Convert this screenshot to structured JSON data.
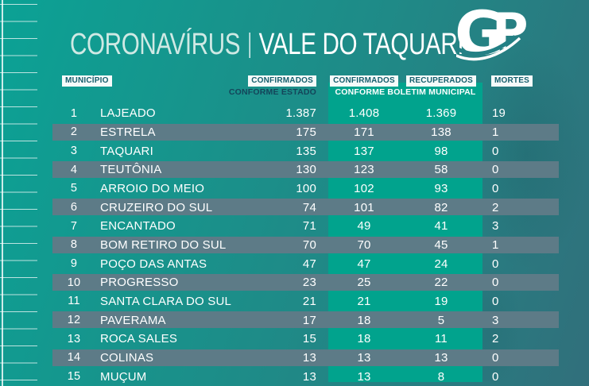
{
  "header": {
    "title_left": "CORONAVÍRUS",
    "title_divider": "|",
    "title_right": "VALE DO TAQUARI",
    "logo_text": "GP"
  },
  "columns": {
    "municipio": "MUNICÍPIO",
    "confirmados_estado": "CONFIRMADOS",
    "confirmados_municipal": "CONFIRMADOS",
    "recuperados": "RECUPERADOS",
    "mortes": "MORTES",
    "sub_estado": "CONFORME ESTADO",
    "sub_municipal": "CONFORME BOLETIM MUNICIPAL"
  },
  "table": {
    "rows": [
      {
        "rank": "1",
        "name": "LAJEADO",
        "confirmed_state": "1.387",
        "confirmed_municipal": "1.408",
        "recovered": "1.369",
        "deaths": "19"
      },
      {
        "rank": "2",
        "name": "ESTRELA",
        "confirmed_state": "175",
        "confirmed_municipal": "171",
        "recovered": "138",
        "deaths": "1"
      },
      {
        "rank": "3",
        "name": "TAQUARI",
        "confirmed_state": "135",
        "confirmed_municipal": "137",
        "recovered": "98",
        "deaths": "0"
      },
      {
        "rank": "4",
        "name": "TEUTÔNIA",
        "confirmed_state": "130",
        "confirmed_municipal": "123",
        "recovered": "58",
        "deaths": "0"
      },
      {
        "rank": "5",
        "name": "ARROIO DO MEIO",
        "confirmed_state": "100",
        "confirmed_municipal": "102",
        "recovered": "93",
        "deaths": "0"
      },
      {
        "rank": "6",
        "name": "CRUZEIRO DO SUL",
        "confirmed_state": "74",
        "confirmed_municipal": "101",
        "recovered": "82",
        "deaths": "2"
      },
      {
        "rank": "7",
        "name": "ENCANTADO",
        "confirmed_state": "71",
        "confirmed_municipal": "49",
        "recovered": "41",
        "deaths": "3"
      },
      {
        "rank": "8",
        "name": "BOM RETIRO DO SUL",
        "confirmed_state": "70",
        "confirmed_municipal": "70",
        "recovered": "45",
        "deaths": "1"
      },
      {
        "rank": "9",
        "name": "POÇO DAS ANTAS",
        "confirmed_state": "47",
        "confirmed_municipal": "47",
        "recovered": "24",
        "deaths": "0"
      },
      {
        "rank": "10",
        "name": "PROGRESSO",
        "confirmed_state": "23",
        "confirmed_municipal": "25",
        "recovered": "22",
        "deaths": "0"
      },
      {
        "rank": "11",
        "name": "SANTA CLARA DO SUL",
        "confirmed_state": "21",
        "confirmed_municipal": "21",
        "recovered": "19",
        "deaths": "0"
      },
      {
        "rank": "12",
        "name": "PAVERAMA",
        "confirmed_state": "17",
        "confirmed_municipal": "18",
        "recovered": "5",
        "deaths": "3"
      },
      {
        "rank": "13",
        "name": "ROCA SALES",
        "confirmed_state": "15",
        "confirmed_municipal": "18",
        "recovered": "11",
        "deaths": "2"
      },
      {
        "rank": "14",
        "name": "COLINAS",
        "confirmed_state": "13",
        "confirmed_municipal": "13",
        "recovered": "13",
        "deaths": "0"
      },
      {
        "rank": "15",
        "name": "MUÇUM",
        "confirmed_state": "13",
        "confirmed_municipal": "13",
        "recovered": "8",
        "deaths": "0"
      }
    ]
  },
  "chart_data": {
    "type": "table",
    "title": "CORONAVÍRUS | VALE DO TAQUARI",
    "columns": [
      "MUNICÍPIO",
      "CONFIRMADOS CONFORME ESTADO",
      "CONFIRMADOS CONFORME BOLETIM MUNICIPAL",
      "RECUPERADOS CONFORME BOLETIM MUNICIPAL",
      "MORTES"
    ],
    "rows": [
      [
        "LAJEADO",
        1387,
        1408,
        1369,
        19
      ],
      [
        "ESTRELA",
        175,
        171,
        138,
        1
      ],
      [
        "TAQUARI",
        135,
        137,
        98,
        0
      ],
      [
        "TEUTÔNIA",
        130,
        123,
        58,
        0
      ],
      [
        "ARROIO DO MEIO",
        100,
        102,
        93,
        0
      ],
      [
        "CRUZEIRO DO SUL",
        74,
        101,
        82,
        2
      ],
      [
        "ENCANTADO",
        71,
        49,
        41,
        3
      ],
      [
        "BOM RETIRO DO SUL",
        70,
        70,
        45,
        1
      ],
      [
        "POÇO DAS ANTAS",
        47,
        47,
        24,
        0
      ],
      [
        "PROGRESSO",
        23,
        25,
        22,
        0
      ],
      [
        "SANTA CLARA DO SUL",
        21,
        21,
        19,
        0
      ],
      [
        "PAVERAMA",
        17,
        18,
        5,
        3
      ],
      [
        "ROCA SALES",
        15,
        18,
        11,
        2
      ],
      [
        "COLINAS",
        13,
        13,
        13,
        0
      ],
      [
        "MUÇUM",
        13,
        13,
        8,
        0
      ]
    ]
  },
  "colors": {
    "bg_left": "#0ba295",
    "bg_right": "#316f7b",
    "accent_green": "#01a38d",
    "row_band_gray": "#5d7b87",
    "chip_bg": "#f6fbfa",
    "chip_text": "#155e6d",
    "sub_estado_text": "#14455a",
    "title_text": "#ffffff"
  }
}
